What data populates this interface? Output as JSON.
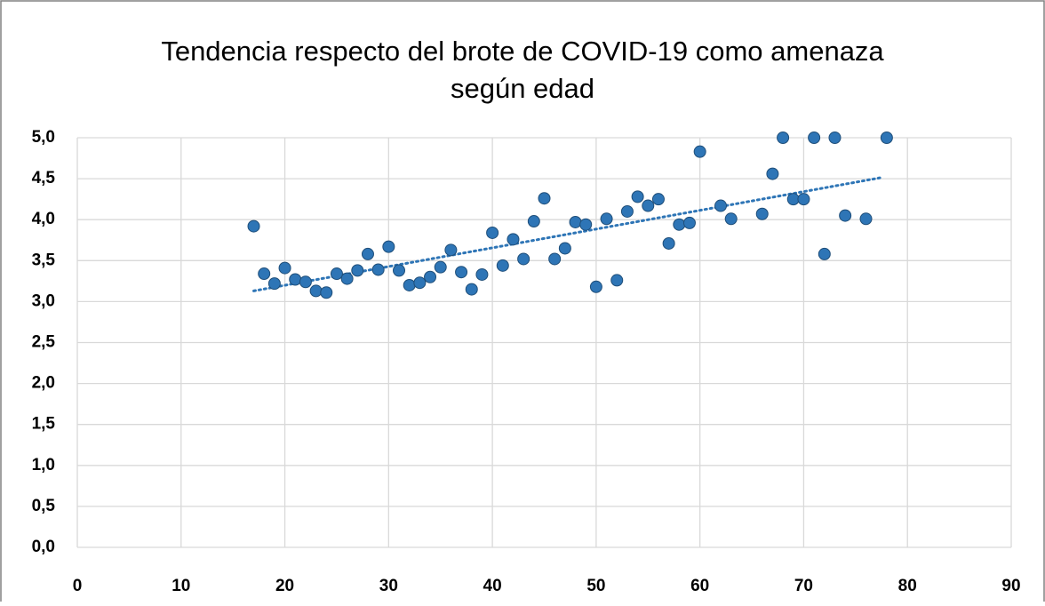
{
  "chart_data": {
    "type": "scatter",
    "title": [
      "Tendencia respecto del brote de COVID-19 como amenaza",
      "según edad"
    ],
    "x": [
      17,
      18,
      19,
      20,
      21,
      22,
      23,
      24,
      25,
      26,
      27,
      28,
      29,
      30,
      31,
      32,
      33,
      34,
      35,
      36,
      37,
      38,
      39,
      40,
      41,
      42,
      43,
      44,
      45,
      46,
      47,
      48,
      49,
      50,
      51,
      52,
      53,
      54,
      55,
      56,
      57,
      58,
      59,
      60,
      62,
      63,
      66,
      67,
      68,
      69,
      70,
      71,
      72,
      73,
      74,
      76,
      78
    ],
    "values": [
      3.92,
      3.34,
      3.22,
      3.41,
      3.27,
      3.24,
      3.13,
      3.11,
      3.34,
      3.28,
      3.38,
      3.58,
      3.39,
      3.67,
      3.38,
      3.2,
      3.23,
      3.3,
      3.42,
      3.63,
      3.36,
      3.15,
      3.33,
      3.84,
      3.44,
      3.76,
      3.52,
      3.98,
      4.26,
      3.52,
      3.65,
      3.97,
      3.94,
      3.18,
      4.01,
      3.26,
      4.1,
      4.28,
      4.17,
      4.25,
      3.71,
      3.94,
      3.96,
      4.83,
      4.17,
      4.01,
      4.07,
      4.56,
      5.0,
      4.25,
      4.25,
      5.0,
      3.58,
      5.0,
      4.05,
      4.01,
      5.0
    ],
    "color": "#2e75b6",
    "trendline": true,
    "xlim": [
      0,
      90
    ],
    "xticks": [
      0,
      10,
      20,
      30,
      40,
      50,
      60,
      70,
      80,
      90
    ],
    "ylim": [
      0,
      5
    ],
    "yticks": [
      {
        "value": 0,
        "label": "0,0"
      },
      {
        "value": 0.5,
        "label": "0,5"
      },
      {
        "value": 1,
        "label": "1,0"
      },
      {
        "value": 1.5,
        "label": "1,5"
      },
      {
        "value": 2,
        "label": "2,0"
      },
      {
        "value": 2.5,
        "label": "2,5"
      },
      {
        "value": 3,
        "label": "3,0"
      },
      {
        "value": 3.5,
        "label": "3,5"
      },
      {
        "value": 4,
        "label": "4,0"
      },
      {
        "value": 4.5,
        "label": "4,5"
      },
      {
        "value": 5,
        "label": "5,0"
      }
    ],
    "grid": true
  }
}
